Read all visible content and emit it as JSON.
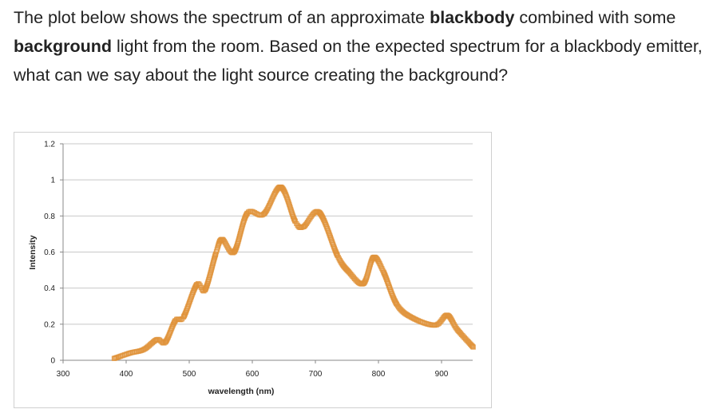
{
  "question": {
    "parts": [
      {
        "text": "The plot below shows the spectrum of an approximate ",
        "bold": false
      },
      {
        "text": "blackbody",
        "bold": true
      },
      {
        "text": " combined with some ",
        "bold": false
      },
      {
        "text": "background",
        "bold": true
      },
      {
        "text": " light from the room.  Based on the expected spectrum for a blackbody emitter, what can we say about the light source creating the background?",
        "bold": false
      }
    ]
  },
  "chart_data": {
    "type": "scatter",
    "title": "",
    "xlabel": "wavelength (nm)",
    "ylabel": "Intensity",
    "xlim": [
      300,
      950
    ],
    "ylim": [
      0,
      1.2
    ],
    "xticks": [
      "300",
      "400",
      "500",
      "600",
      "700",
      "800",
      "900"
    ],
    "yticks": [
      "0",
      "0.2",
      "0.4",
      "0.6",
      "0.8",
      "1",
      "1.2"
    ],
    "grid": "horizontal",
    "legend": "none",
    "color": "#e0923a",
    "x": [
      381,
      406,
      428,
      449,
      462,
      478,
      491,
      512,
      525,
      542,
      552,
      571,
      592,
      618,
      645,
      668,
      681,
      706,
      735,
      753,
      776,
      792,
      808,
      829,
      854,
      890,
      909,
      925,
      951
    ],
    "y": [
      0.01,
      0.04,
      0.06,
      0.115,
      0.1,
      0.22,
      0.24,
      0.42,
      0.39,
      0.59,
      0.67,
      0.6,
      0.815,
      0.81,
      0.96,
      0.77,
      0.74,
      0.82,
      0.58,
      0.49,
      0.425,
      0.57,
      0.49,
      0.31,
      0.235,
      0.195,
      0.25,
      0.17,
      0.07
    ]
  }
}
